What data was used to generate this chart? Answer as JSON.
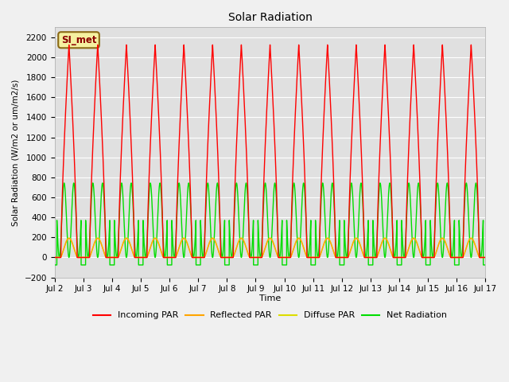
{
  "title": "Solar Radiation",
  "ylabel": "Solar Radiation (W/m2 or um/m2/s)",
  "xlabel": "Time",
  "ylim": [
    -200,
    2300
  ],
  "xlim": [
    0,
    15
  ],
  "x_tick_positions": [
    0,
    1,
    2,
    3,
    4,
    5,
    6,
    7,
    8,
    9,
    10,
    11,
    12,
    13,
    14,
    15
  ],
  "x_tick_labels": [
    "Jul 2",
    "Jul 3",
    "Jul 4",
    "Jul 5",
    "Jul 6",
    "Jul 7",
    "Jul 8",
    "Jul 9",
    "Jul 10",
    "Jul 11",
    "Jul 12",
    "Jul 13",
    "Jul 14",
    "Jul 15",
    "Jul 16",
    "Jul 17"
  ],
  "yticks": [
    -200,
    0,
    200,
    400,
    600,
    800,
    1000,
    1200,
    1400,
    1600,
    1800,
    2000,
    2200
  ],
  "bg_color": "#e0e0e0",
  "grid_color": "#ffffff",
  "fig_color": "#f0f0f0",
  "line_colors": {
    "incoming": "#ff0000",
    "reflected": "#ffa500",
    "diffuse": "#dddd00",
    "net": "#00dd00"
  },
  "legend_label": "SI_met",
  "series_labels": [
    "Incoming PAR",
    "Reflected PAR",
    "Diffuse PAR",
    "Net Radiation"
  ],
  "num_cycles": 15,
  "peak_incoming": 2130,
  "peak_reflected": 190,
  "peak_diffuse": 195,
  "peak_net": 620,
  "night_net": -75
}
